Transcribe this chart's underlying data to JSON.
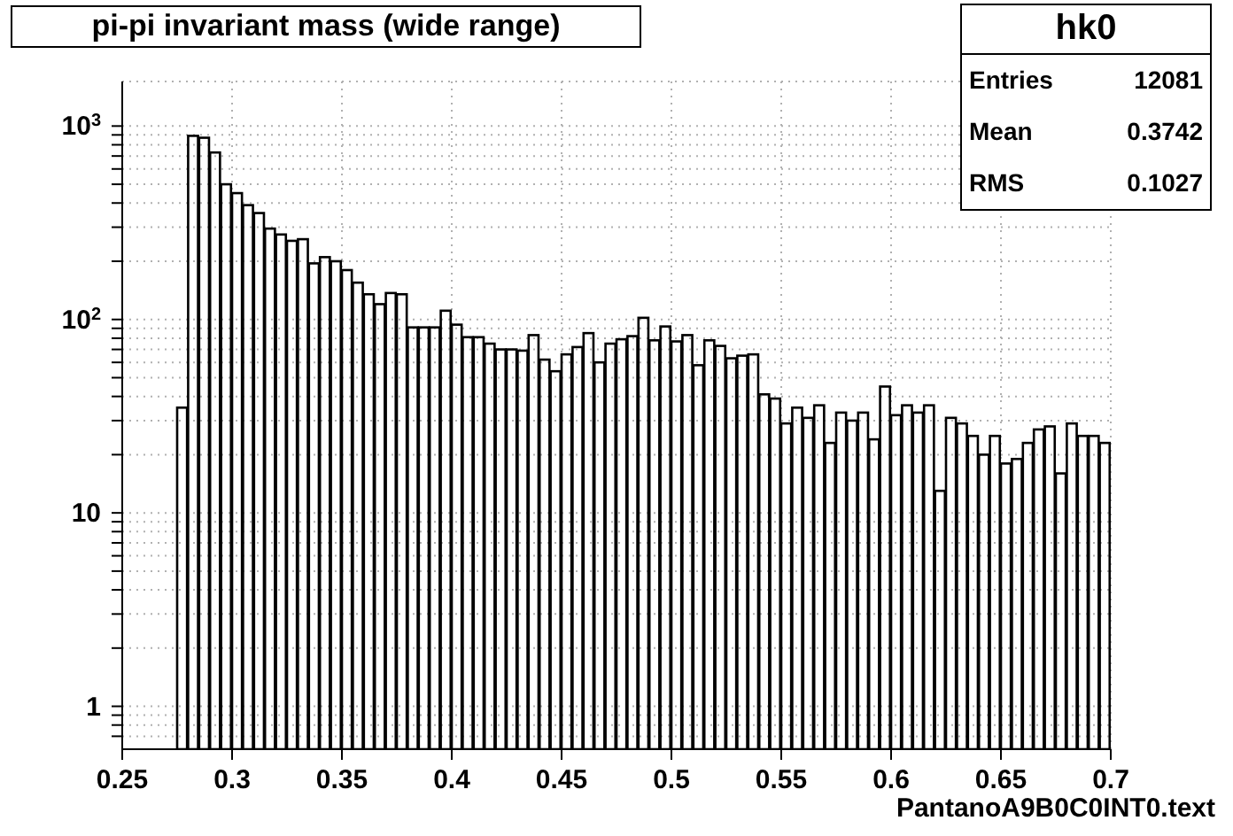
{
  "chart_data": {
    "type": "histogram",
    "title": "pi-pi invariant mass (wide range)",
    "xlabel": "PantanoA9B0C0INT0.text",
    "annotations": [
      "hk0",
      "Entries 12081",
      "Mean 0.3742",
      "RMS 0.1027"
    ],
    "bins": [
      0.25,
      0.255,
      0.26,
      0.265,
      0.27,
      0.275,
      0.28,
      0.285,
      0.29,
      0.295,
      0.3,
      0.305,
      0.31,
      0.315,
      0.32,
      0.325,
      0.33,
      0.335,
      0.34,
      0.345,
      0.35,
      0.355,
      0.36,
      0.365,
      0.37,
      0.375,
      0.38,
      0.385,
      0.39,
      0.395,
      0.4,
      0.405,
      0.41,
      0.415,
      0.42,
      0.425,
      0.43,
      0.435,
      0.44,
      0.445,
      0.45,
      0.455,
      0.46,
      0.465,
      0.47,
      0.475,
      0.48,
      0.485,
      0.49,
      0.495,
      0.5,
      0.505,
      0.51,
      0.515,
      0.52,
      0.525,
      0.53,
      0.535,
      0.54,
      0.545,
      0.55,
      0.555,
      0.56,
      0.565,
      0.57,
      0.575,
      0.58,
      0.585,
      0.59,
      0.595,
      0.6,
      0.605,
      0.61,
      0.615,
      0.62,
      0.625,
      0.63,
      0.635,
      0.64,
      0.645,
      0.65,
      0.655,
      0.66,
      0.665,
      0.67,
      0.675,
      0.68,
      0.685,
      0.69,
      0.695,
      0.7
    ],
    "values": [
      null,
      null,
      null,
      null,
      null,
      35,
      890,
      870,
      730,
      500,
      450,
      390,
      355,
      295,
      275,
      255,
      260,
      195,
      210,
      200,
      180,
      155,
      135,
      120,
      137,
      135,
      91,
      91,
      91,
      111,
      94,
      81,
      81,
      75,
      70,
      70,
      69,
      83,
      62,
      54,
      66,
      72,
      85,
      60,
      75,
      79,
      82,
      102,
      78,
      92,
      77,
      83,
      58,
      78,
      73,
      63,
      65,
      66,
      41,
      39,
      29,
      35,
      31,
      36,
      23,
      33,
      30,
      33,
      24,
      45,
      32,
      36,
      33,
      36,
      13,
      31,
      29,
      25,
      20,
      25,
      18,
      19,
      23,
      27,
      28,
      16,
      29,
      25,
      25,
      23
    ],
    "color": "#000000",
    "log": "y",
    "grid": true,
    "xlim": [
      0.25,
      0.7
    ],
    "xticks": [
      0.25,
      0.3,
      0.35,
      0.4,
      0.45,
      0.5,
      0.55,
      0.6,
      0.65,
      0.7
    ],
    "ylim": [
      0.6,
      1700
    ],
    "yticks": [
      {
        "value": 0.7,
        "label": null
      },
      {
        "value": 0.8,
        "label": null
      },
      {
        "value": 0.9,
        "label": null
      },
      1,
      {
        "value": 2,
        "label": null
      },
      {
        "value": 3,
        "label": null
      },
      {
        "value": 4,
        "label": null
      },
      {
        "value": 5,
        "label": null
      },
      {
        "value": 6,
        "label": null
      },
      {
        "value": 7,
        "label": null
      },
      {
        "value": 8,
        "label": null
      },
      {
        "value": 9,
        "label": null
      },
      10,
      {
        "value": 20,
        "label": null
      },
      {
        "value": 30,
        "label": null
      },
      {
        "value": 40,
        "label": null
      },
      {
        "value": 50,
        "label": null
      },
      {
        "value": 60,
        "label": null
      },
      {
        "value": 70,
        "label": null
      },
      {
        "value": 80,
        "label": null
      },
      {
        "value": 90,
        "label": null
      },
      {
        "value": 100,
        "label": "10$^{2}$"
      },
      {
        "value": 200,
        "label": null
      },
      {
        "value": 300,
        "label": null
      },
      {
        "value": 400,
        "label": null
      },
      {
        "value": 500,
        "label": null
      },
      {
        "value": 600,
        "label": null
      },
      {
        "value": 700,
        "label": null
      },
      {
        "value": 800,
        "label": null
      },
      {
        "value": 900,
        "label": null
      },
      {
        "value": 1000,
        "label": "10$^{3}$"
      }
    ]
  }
}
